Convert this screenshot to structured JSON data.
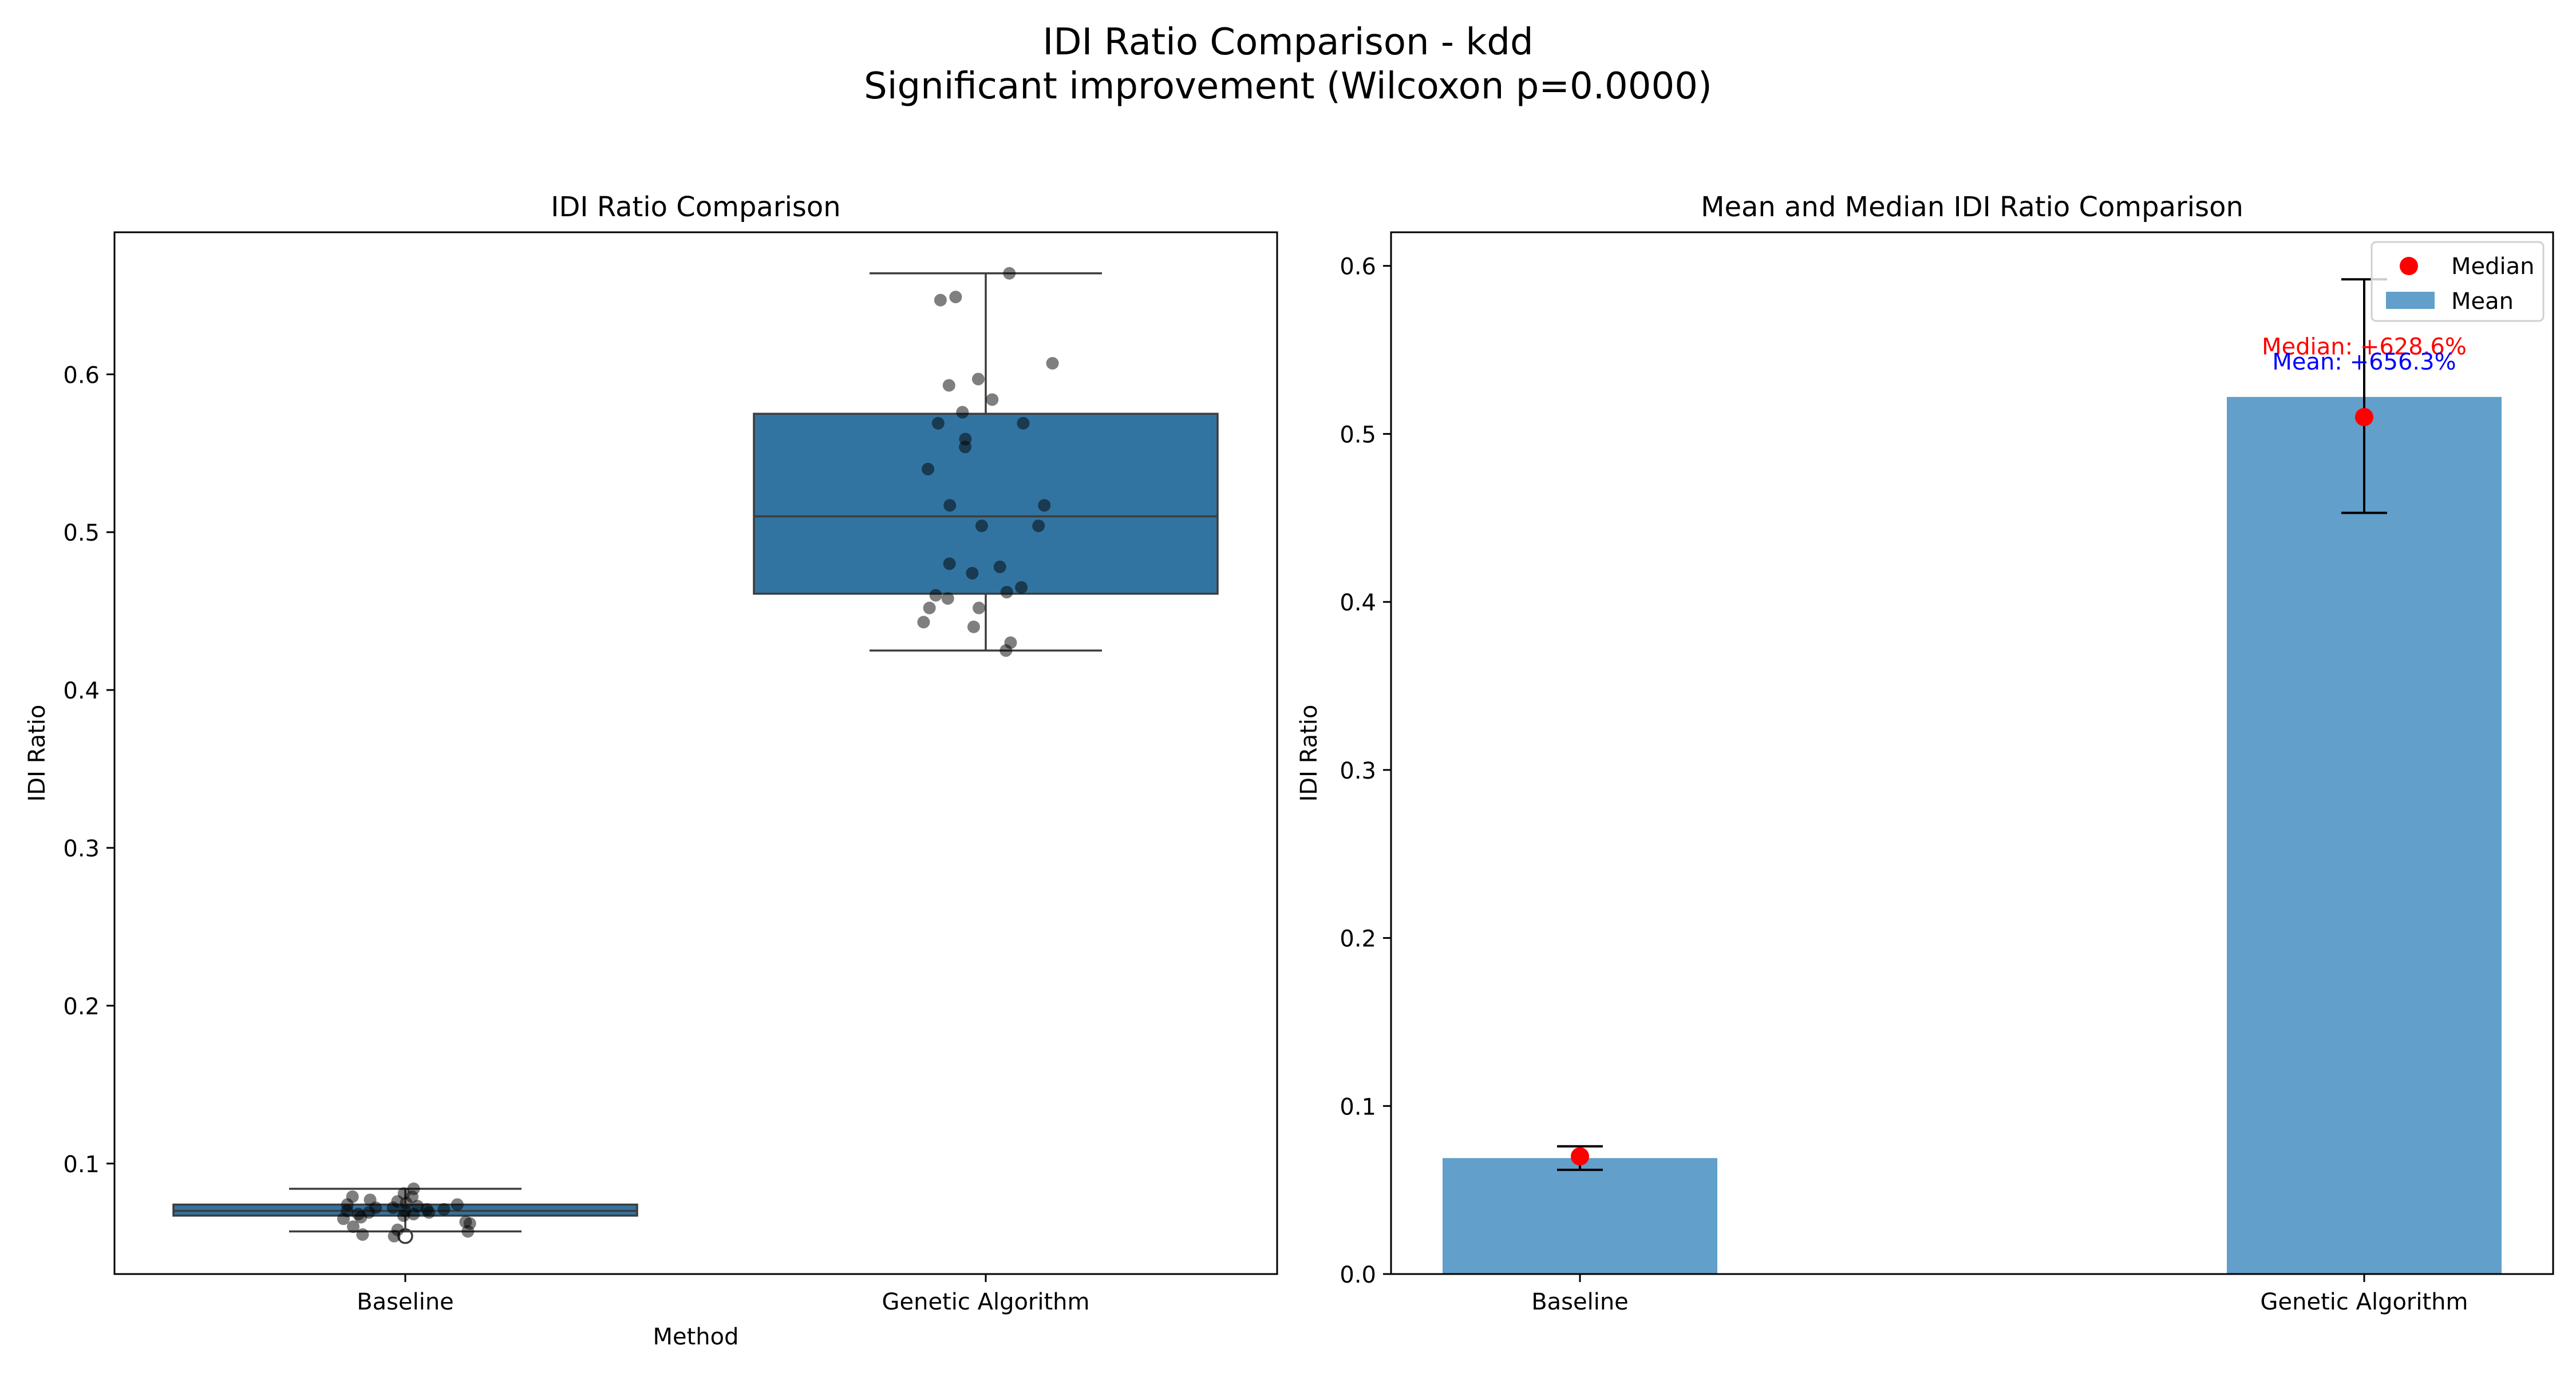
{
  "suptitle": {
    "line1": "IDI Ratio Comparison - kdd",
    "line2": "Significant improvement (Wilcoxon p=0.0000)"
  },
  "colors": {
    "box_fill": "#3274a1",
    "bar_fill": "#629fca",
    "median_marker": "#ff0000",
    "mean_text": "#0000ff",
    "median_text": "#ff0000",
    "points": "#000000"
  },
  "chart_data": [
    {
      "type": "box",
      "title": "IDI Ratio Comparison",
      "xlabel": "Method",
      "ylabel": "IDI Ratio",
      "categories": [
        "Baseline",
        "Genetic Algorithm"
      ],
      "ylim": [
        0.03,
        0.69
      ],
      "yticks": [
        0.1,
        0.2,
        0.3,
        0.4,
        0.5,
        0.6
      ],
      "grid": false,
      "boxes": [
        {
          "name": "Baseline",
          "whisker_low": 0.057,
          "q1": 0.067,
          "median": 0.07,
          "q3": 0.074,
          "whisker_high": 0.084,
          "outliers": [
            0.054
          ],
          "points": [
            0.081,
            0.084,
            0.079,
            0.077,
            0.076,
            0.075,
            0.074,
            0.074,
            0.073,
            0.072,
            0.072,
            0.071,
            0.071,
            0.07,
            0.07,
            0.069,
            0.069,
            0.068,
            0.068,
            0.067,
            0.066,
            0.065,
            0.063,
            0.062,
            0.06,
            0.058,
            0.057,
            0.055,
            0.054,
            0.079
          ]
        },
        {
          "name": "Genetic Algorithm",
          "whisker_low": 0.425,
          "q1": 0.461,
          "median": 0.51,
          "q3": 0.575,
          "whisker_high": 0.664,
          "outliers": [],
          "points": [
            0.664,
            0.649,
            0.647,
            0.607,
            0.597,
            0.593,
            0.584,
            0.576,
            0.569,
            0.569,
            0.559,
            0.554,
            0.54,
            0.517,
            0.517,
            0.504,
            0.504,
            0.48,
            0.478,
            0.474,
            0.465,
            0.462,
            0.46,
            0.458,
            0.452,
            0.452,
            0.443,
            0.44,
            0.43,
            0.425
          ]
        }
      ]
    },
    {
      "type": "bar",
      "title": "Mean and Median IDI Ratio Comparison",
      "xlabel": "",
      "ylabel": "IDI Ratio",
      "categories": [
        "Baseline",
        "Genetic Algorithm"
      ],
      "ylim": [
        0.0,
        0.62
      ],
      "yticks": [
        0.0,
        0.1,
        0.2,
        0.3,
        0.4,
        0.5,
        0.6
      ],
      "grid": false,
      "series": [
        {
          "name": "Mean",
          "values": [
            0.069,
            0.522
          ],
          "error_low": [
            0.062,
            0.453
          ],
          "error_high": [
            0.076,
            0.592
          ]
        },
        {
          "name": "Median",
          "values": [
            0.07,
            0.51
          ]
        }
      ],
      "legend": {
        "position": "top-right",
        "entries": [
          "Median",
          "Mean"
        ]
      },
      "annotations": {
        "median_text": "Median: +628.6%",
        "mean_text": "Mean: +656.3%",
        "median_y": 0.552,
        "mean_y": 0.543
      }
    }
  ]
}
